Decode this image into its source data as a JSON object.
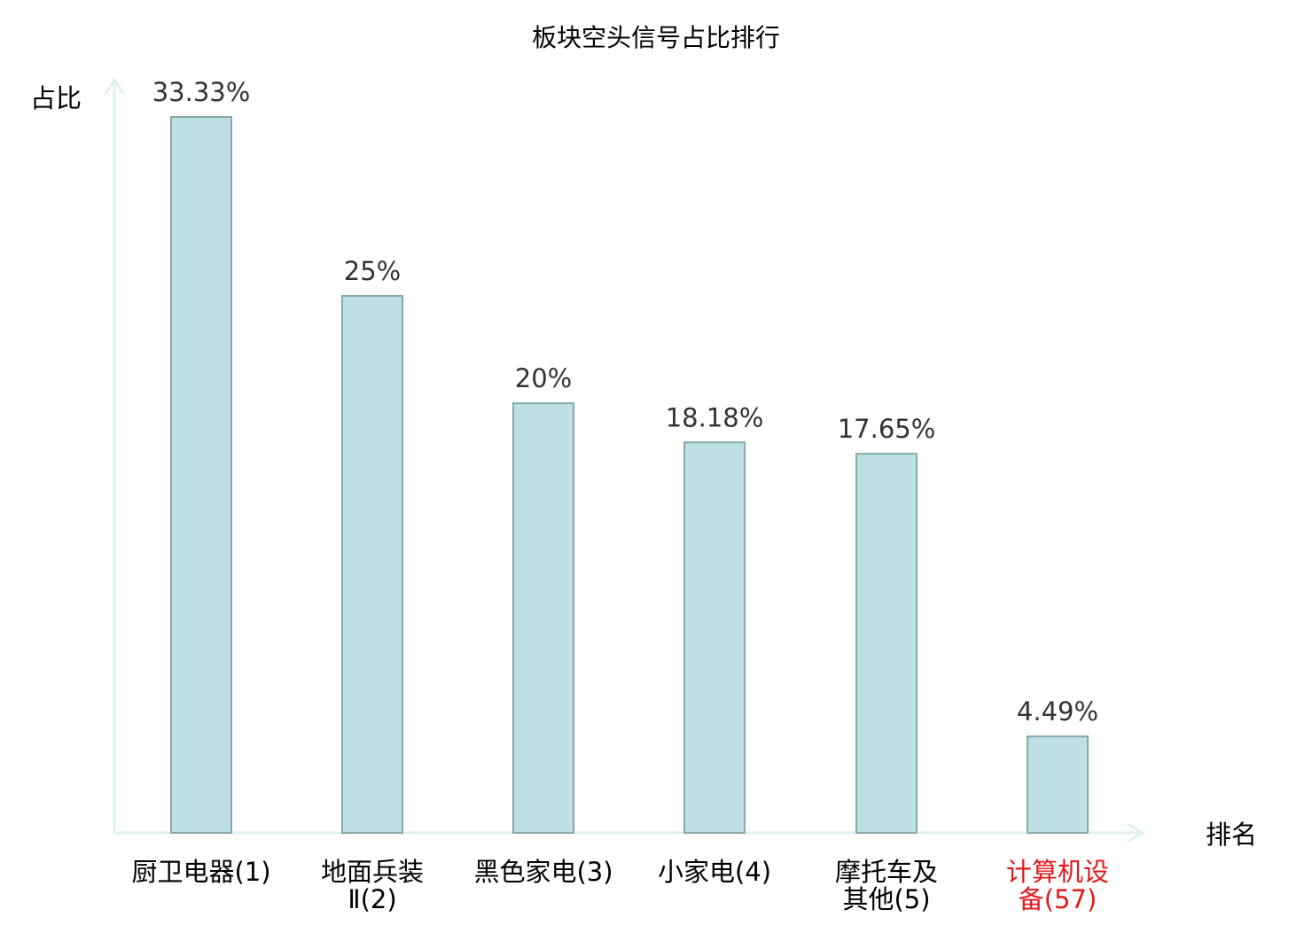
{
  "chart_data": {
    "type": "bar",
    "title": "板块空头信号占比排行",
    "ylabel": "占比",
    "xlabel": "排名",
    "ylim": [
      0,
      35
    ],
    "grid": false,
    "categories": [
      [
        "厨卫电器(1)"
      ],
      [
        "地面兵装",
        "Ⅱ(2)"
      ],
      [
        "黑色家电(3)"
      ],
      [
        "小家电(4)"
      ],
      [
        "摩托车及",
        "其他(5)"
      ],
      [
        "计算机设",
        "备(57)"
      ]
    ],
    "values": [
      33.33,
      25,
      20,
      18.18,
      17.65,
      4.49
    ],
    "value_labels": [
      "33.33%",
      "25%",
      "20%",
      "18.18%",
      "17.65%",
      "4.49%"
    ],
    "highlight_index": 5,
    "colors": {
      "bar_fill": "#bce0e3",
      "bar_stroke": "#87a9ab",
      "axis": "#e0f2ef",
      "text": "#333333",
      "label_text": "#000000",
      "highlight": "#e31a1c"
    }
  }
}
